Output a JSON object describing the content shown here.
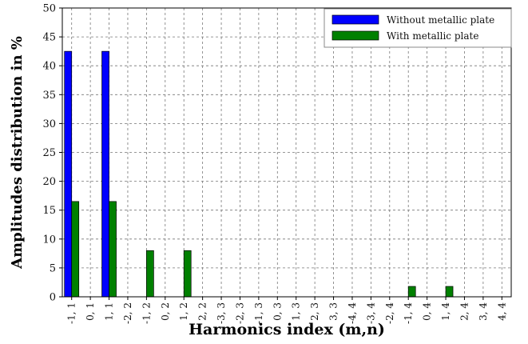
{
  "chart_data": {
    "type": "bar",
    "xlabel": "Harmonics index (m,n)",
    "ylabel": "Amplitudes distribution in %",
    "ylim": [
      0,
      50
    ],
    "yticks": [
      0,
      5,
      10,
      15,
      20,
      25,
      30,
      35,
      40,
      45,
      50
    ],
    "grid": true,
    "legend_position": "top-right",
    "categories": [
      "-1, 1",
      "0, 1",
      "1, 1",
      "-2, 2",
      "-1, 2",
      "0, 2",
      "1, 2",
      "2, 2",
      "-3, 3",
      "-2, 3",
      "-1, 3",
      "0, 3",
      "1, 3",
      "2, 3",
      "3, 3",
      "-4, 4",
      "-3, 4",
      "-2, 4",
      "-1, 4",
      "0, 4",
      "1, 4",
      "2, 4",
      "3, 4",
      "4, 4"
    ],
    "series": [
      {
        "name": "Without metallic plate",
        "color": "#0000ff",
        "values": [
          42.5,
          0,
          42.5,
          0,
          0,
          0,
          0,
          0,
          0,
          0,
          0,
          0,
          0,
          0,
          0,
          0,
          0,
          0,
          0,
          0,
          0,
          0,
          0,
          0
        ]
      },
      {
        "name": "With metallic plate",
        "color": "#008000",
        "values": [
          16.5,
          0,
          16.5,
          0,
          8,
          0,
          8,
          0,
          0,
          0,
          0,
          0,
          0,
          0,
          0,
          0,
          0,
          0,
          1.8,
          0,
          1.8,
          0,
          0,
          0
        ]
      }
    ]
  }
}
